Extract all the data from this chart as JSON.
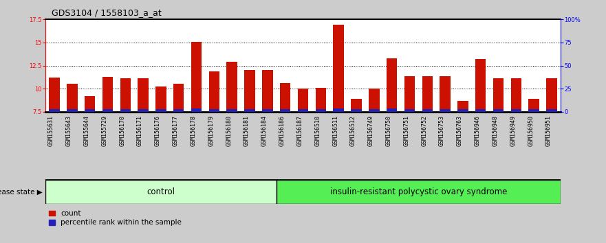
{
  "title": "GDS3104 / 1558103_a_at",
  "samples": [
    "GSM155631",
    "GSM155643",
    "GSM155644",
    "GSM155729",
    "GSM156170",
    "GSM156171",
    "GSM156176",
    "GSM156177",
    "GSM156178",
    "GSM156179",
    "GSM156180",
    "GSM156181",
    "GSM156184",
    "GSM156186",
    "GSM156187",
    "GSM156510",
    "GSM156511",
    "GSM156512",
    "GSM156749",
    "GSM156750",
    "GSM156751",
    "GSM156752",
    "GSM156753",
    "GSM156763",
    "GSM156946",
    "GSM156948",
    "GSM156949",
    "GSM156950",
    "GSM156951"
  ],
  "red_values": [
    11.2,
    10.5,
    9.2,
    11.3,
    11.15,
    11.1,
    10.25,
    10.5,
    15.1,
    11.9,
    12.9,
    12.05,
    12.0,
    10.6,
    10.0,
    10.1,
    16.9,
    8.9,
    10.0,
    13.3,
    11.35,
    11.35,
    11.35,
    8.7,
    13.2,
    11.15,
    11.15,
    8.9,
    11.1
  ],
  "blue_values": [
    0.25,
    0.25,
    0.25,
    0.25,
    0.25,
    0.25,
    0.25,
    0.25,
    0.35,
    0.25,
    0.25,
    0.25,
    0.25,
    0.25,
    0.25,
    0.25,
    0.35,
    0.25,
    0.25,
    0.35,
    0.25,
    0.25,
    0.25,
    0.25,
    0.25,
    0.25,
    0.25,
    0.25,
    0.25
  ],
  "control_count": 13,
  "disease_count": 16,
  "control_label": "control",
  "disease_label": "insulin-resistant polycystic ovary syndrome",
  "group_label": "disease state",
  "red_color": "#cc1100",
  "blue_color": "#2222bb",
  "control_bg": "#ccffcc",
  "disease_bg": "#55ee55",
  "xtick_bg": "#cccccc",
  "ylim_left": [
    7.5,
    17.5
  ],
  "yticks_left": [
    7.5,
    10.0,
    12.5,
    15.0,
    17.5
  ],
  "ytick_labels_left": [
    "7.5",
    "10",
    "12.5",
    "15",
    "17.5"
  ],
  "yticks_right": [
    0,
    25,
    50,
    75,
    100
  ],
  "ytick_labels_right": [
    "0",
    "25",
    "50",
    "75",
    "100%"
  ],
  "bar_width": 0.6,
  "base": 7.5,
  "legend_count_label": "count",
  "legend_pct_label": "percentile rank within the sample",
  "fig_bg": "#cccccc",
  "plot_bg": "#ffffff",
  "title_fontsize": 9,
  "tick_fontsize": 6,
  "group_fontsize": 8.5
}
